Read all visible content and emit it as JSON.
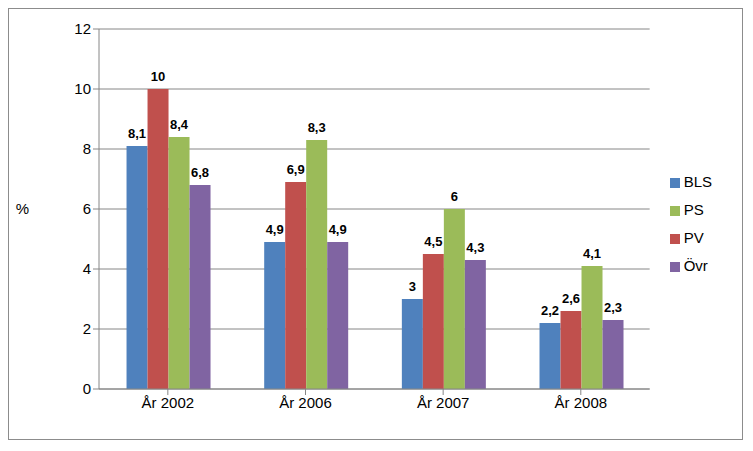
{
  "chart_data": {
    "type": "bar",
    "y_label": "%",
    "categories": [
      "År 2002",
      "År 2006",
      "År 2007",
      "År 2008"
    ],
    "series": [
      {
        "name": "BLS",
        "color": "#4f81bd",
        "values": [
          8.1,
          4.9,
          3,
          2.2
        ],
        "value_labels": [
          "8,1",
          "4,9",
          "3",
          "2,2"
        ]
      },
      {
        "name": "PV",
        "color": "#c0504d",
        "values": [
          10,
          6.9,
          4.5,
          2.6
        ],
        "value_labels": [
          "10",
          "6,9",
          "4,5",
          "2,6"
        ]
      },
      {
        "name": "PS",
        "color": "#9bbb59",
        "values": [
          8.4,
          8.3,
          6,
          4.1
        ],
        "value_labels": [
          "8,4",
          "8,3",
          "6",
          "4,1"
        ]
      },
      {
        "name": "Övr",
        "color": "#8064a2",
        "values": [
          6.8,
          4.9,
          4.3,
          2.3
        ],
        "value_labels": [
          "6,8",
          "4,9",
          "4,3",
          "2,3"
        ]
      }
    ],
    "ylim": [
      0,
      12
    ],
    "yticks": [
      0,
      2,
      4,
      6,
      8,
      10,
      12
    ],
    "grid": true,
    "legend": "right",
    "data_labels": true
  }
}
